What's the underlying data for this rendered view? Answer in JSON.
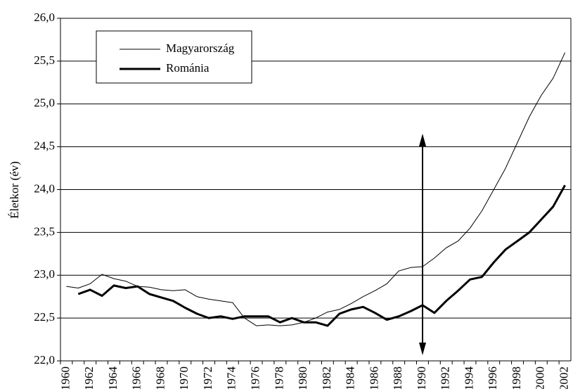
{
  "chart_data": {
    "type": "line",
    "ylabel": "Életkor (év)",
    "categories": [
      "1960",
      null,
      "1962",
      null,
      "1964",
      null,
      "1966",
      null,
      "1968",
      null,
      "1970",
      null,
      "1972",
      null,
      "1974",
      null,
      "1976",
      null,
      "1978",
      null,
      "1980",
      null,
      "1982",
      null,
      "1984",
      null,
      "1986",
      null,
      "1988",
      null,
      "1990",
      null,
      "1992",
      null,
      "1994",
      null,
      "1996",
      null,
      "1998",
      null,
      "2000",
      null,
      "2002"
    ],
    "series": [
      {
        "name": "Magyarország",
        "color": "#000000",
        "width": 1,
        "values": [
          22.87,
          22.85,
          22.9,
          23.01,
          22.96,
          22.93,
          22.87,
          22.86,
          22.83,
          22.82,
          22.83,
          22.75,
          22.72,
          22.7,
          22.68,
          22.5,
          22.41,
          22.42,
          22.41,
          22.42,
          22.45,
          22.5,
          22.57,
          22.6,
          22.67,
          22.75,
          22.82,
          22.9,
          23.05,
          23.09,
          23.1,
          23.2,
          23.32,
          23.4,
          23.55,
          23.75,
          24.0,
          24.25,
          24.55,
          24.85,
          25.1,
          25.3,
          25.6
        ]
      },
      {
        "name": "Románia",
        "color": "#000000",
        "width": 3,
        "values": [
          null,
          22.78,
          22.83,
          22.76,
          22.88,
          22.85,
          22.87,
          22.78,
          22.74,
          22.7,
          22.62,
          22.55,
          22.5,
          22.52,
          22.49,
          22.52,
          22.52,
          22.52,
          22.45,
          22.5,
          22.45,
          22.45,
          22.41,
          22.55,
          22.6,
          22.63,
          22.56,
          22.48,
          22.52,
          22.58,
          22.65,
          22.56,
          22.7,
          22.82,
          22.95,
          22.98,
          23.15,
          23.3,
          23.4,
          23.5,
          23.65,
          23.8,
          24.05
        ]
      }
    ],
    "ylim": [
      22,
      26
    ],
    "yticks": [
      {
        "value": 22,
        "label": "22,0"
      },
      {
        "value": 22.5,
        "label": "22,5"
      },
      {
        "value": 23,
        "label": "23,0"
      },
      {
        "value": 23.5,
        "label": "23,5"
      },
      {
        "value": 24,
        "label": "24,0"
      },
      {
        "value": 24.5,
        "label": "24,5"
      },
      {
        "value": 25,
        "label": "25,0"
      },
      {
        "value": 25.5,
        "label": "25,5"
      },
      {
        "value": 26,
        "label": "26,0"
      }
    ],
    "grid": true,
    "legend": "upper left"
  }
}
